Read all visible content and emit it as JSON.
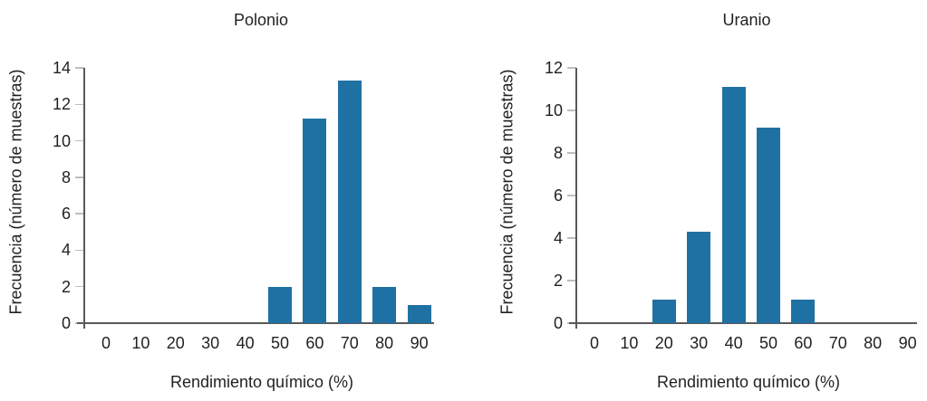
{
  "figure": {
    "background_color": "#ffffff",
    "bar_color": "#2071A3",
    "axis_color": "#58595B",
    "tick_mark_color": "#BCBEC0",
    "text_color": "#231F20"
  },
  "chart_data": [
    {
      "type": "bar",
      "title": "Polonio",
      "xlabel": "Rendimiento químico (%)",
      "ylabel": "Frecuencia (número de muestras)",
      "categories": [
        0,
        10,
        20,
        30,
        40,
        50,
        60,
        70,
        80,
        90
      ],
      "values": [
        0,
        0,
        0,
        0,
        0,
        2,
        11.2,
        13.3,
        2,
        1
      ],
      "ylim": [
        0,
        14
      ],
      "yticks": [
        0,
        2,
        4,
        6,
        8,
        10,
        12,
        14
      ],
      "grid": false,
      "legend_position": "none"
    },
    {
      "type": "bar",
      "title": "Uranio",
      "xlabel": "Rendimiento químico (%)",
      "ylabel": "Frecuencia (número de muestras)",
      "categories": [
        0,
        10,
        20,
        30,
        40,
        50,
        60,
        70,
        80,
        90
      ],
      "values": [
        0,
        0,
        1.1,
        4.3,
        11.1,
        9.2,
        1.1,
        0,
        0,
        0
      ],
      "ylim": [
        0,
        12
      ],
      "yticks": [
        0,
        2,
        4,
        6,
        8,
        10,
        12
      ],
      "grid": false,
      "legend_position": "none"
    }
  ]
}
